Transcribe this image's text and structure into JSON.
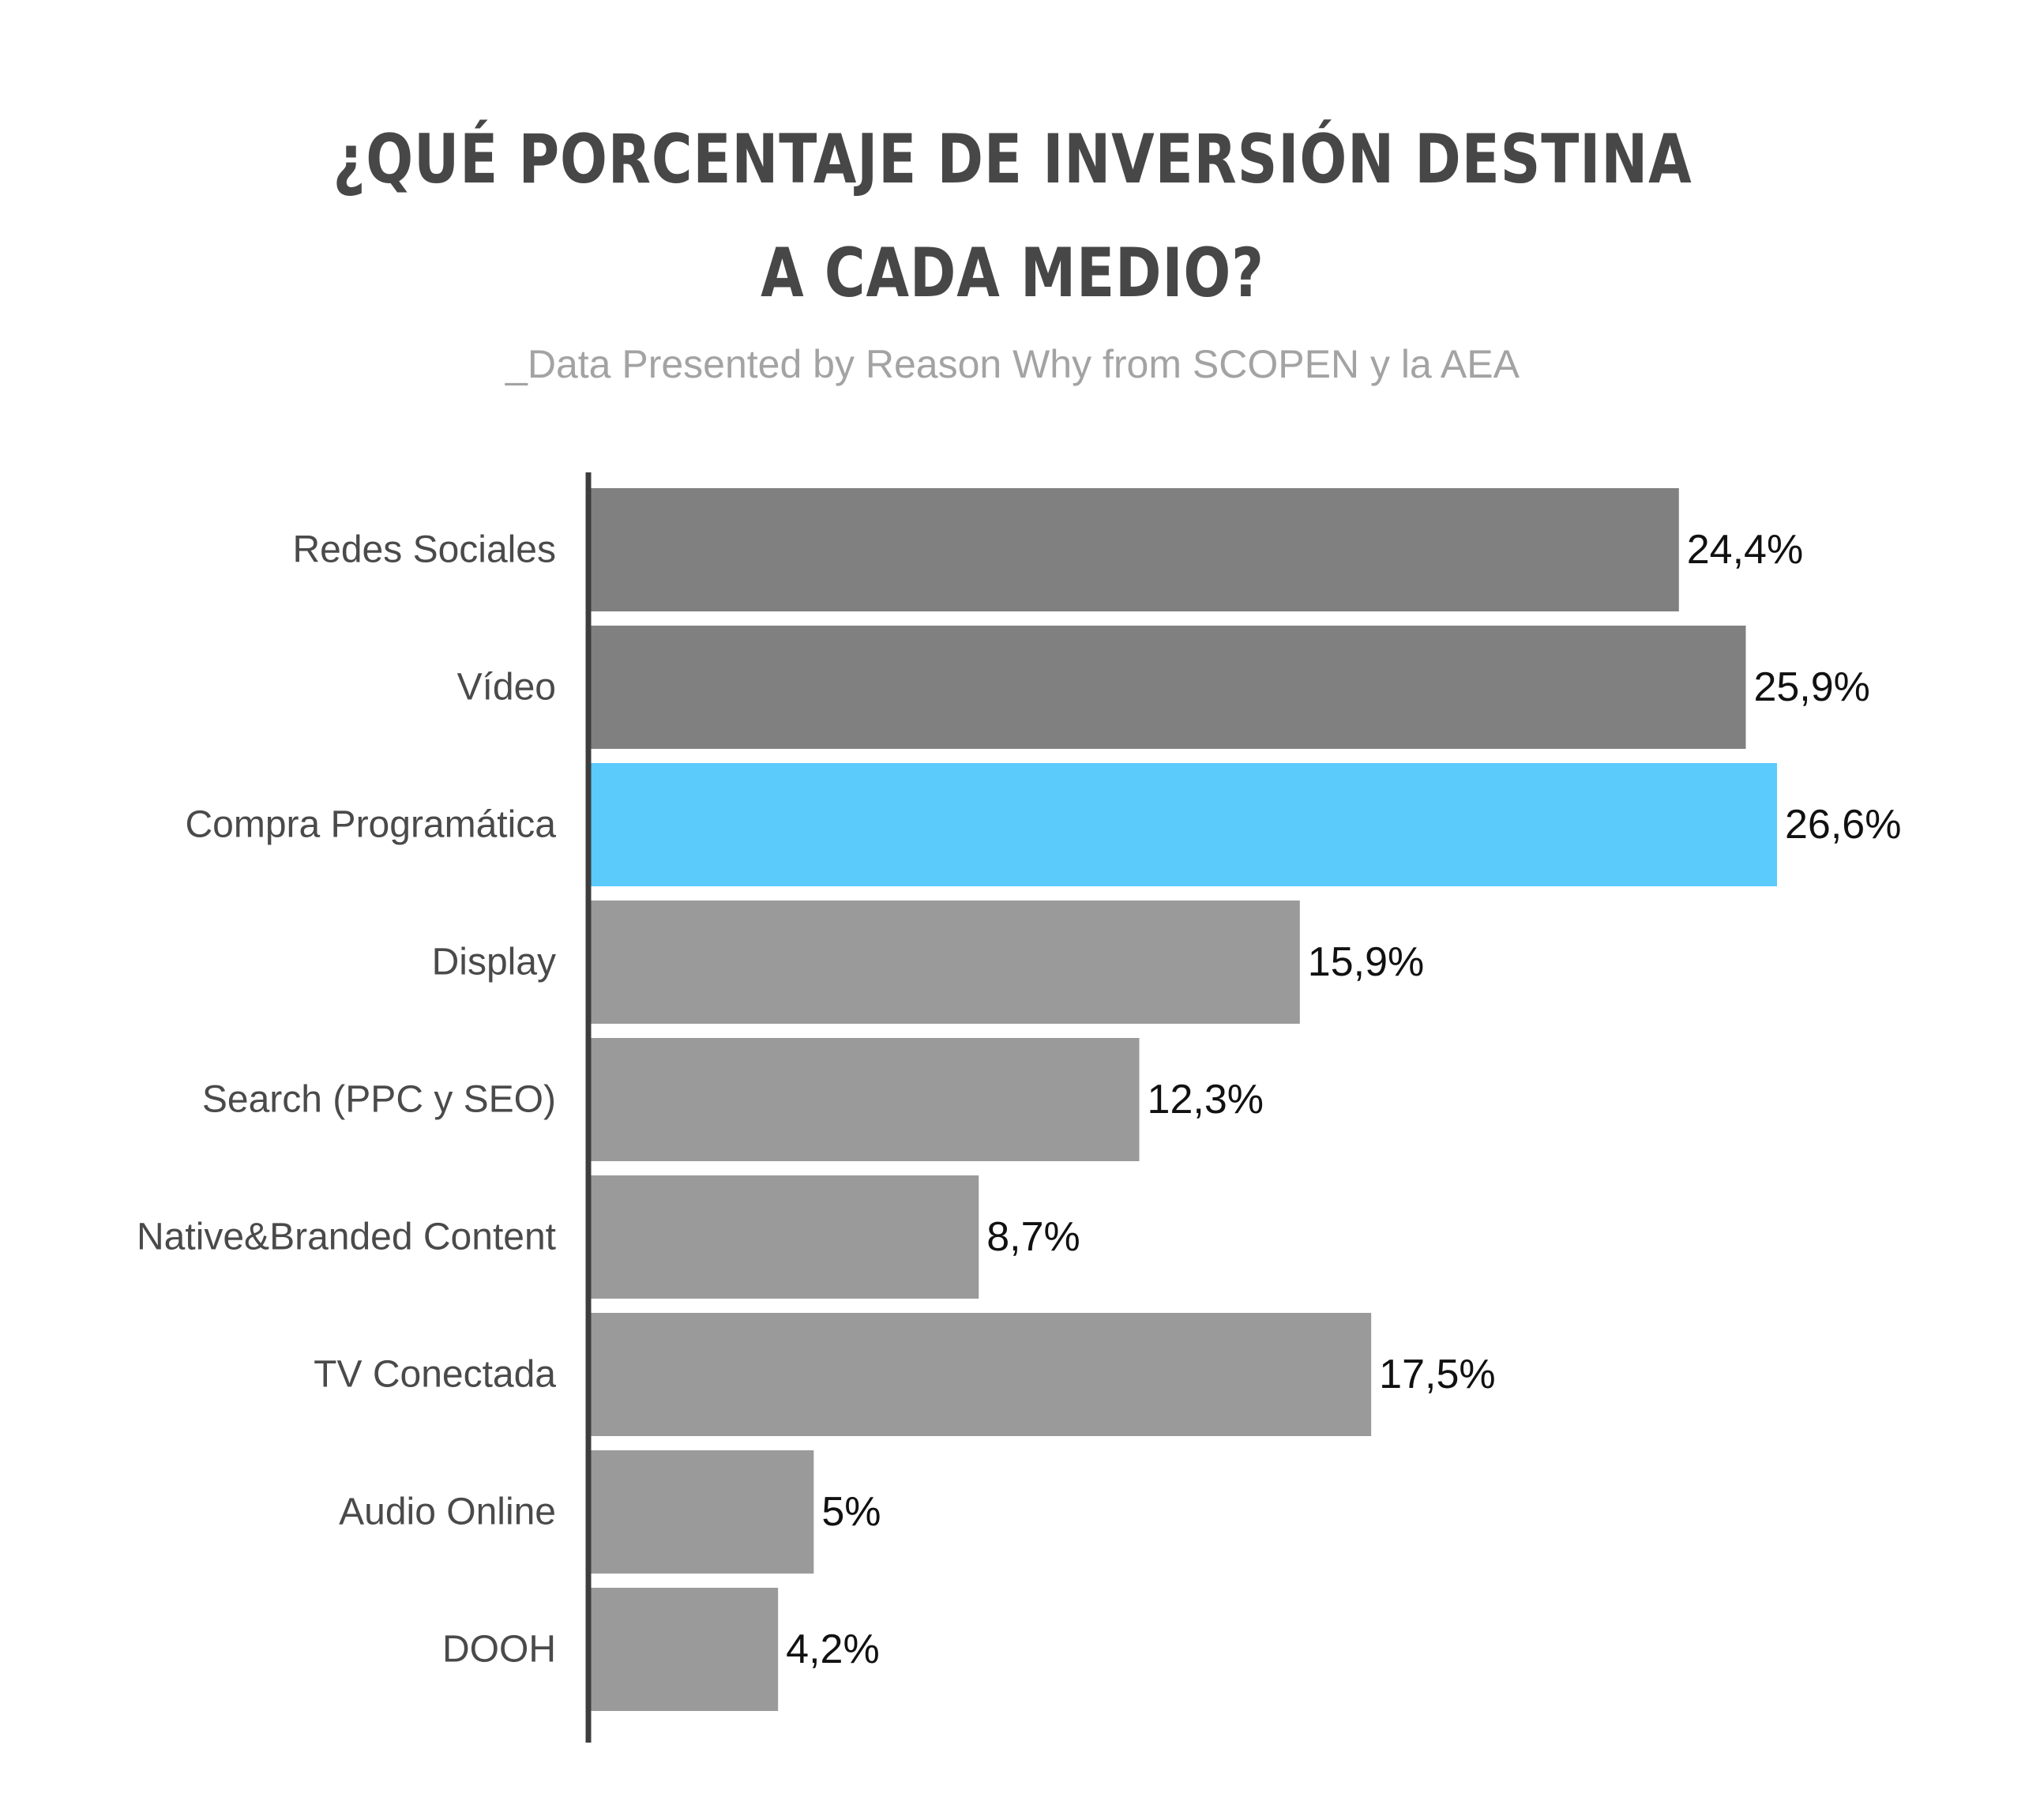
{
  "title": {
    "line1": "¿QUÉ PORCENTAJE DE INVERSIÓN DESTINA",
    "line2": "A CADA MEDIO?"
  },
  "subtitle": "_Data Presented by Reason Why from SCOPEN y la AEA",
  "colors": {
    "bar_dark": "#808080",
    "bar_light": "#9a9a9a",
    "bar_highlight": "#5bcbfc",
    "axis": "#3d3d3d"
  },
  "chart_data": {
    "type": "bar",
    "orientation": "horizontal",
    "categories": [
      "Redes Sociales",
      "Vídeo",
      "Compra Programática",
      "Display",
      "Search (PPC y SEO)",
      "Native&Branded Content",
      "TV Conectada",
      "Audio Online",
      "DOOH"
    ],
    "values": [
      24.4,
      25.9,
      26.6,
      15.9,
      12.3,
      8.7,
      17.5,
      5,
      4.2
    ],
    "value_labels": [
      "24,4%",
      "25,9%",
      "26,6%",
      "15,9%",
      "12,3%",
      "8,7%",
      "17,5%",
      "5%",
      "4,2%"
    ],
    "bar_color_keys": [
      "bar_dark",
      "bar_dark",
      "bar_highlight",
      "bar_light",
      "bar_light",
      "bar_light",
      "bar_light",
      "bar_light",
      "bar_light"
    ],
    "xlim": [
      0,
      26.6
    ],
    "grid": false,
    "legend": "none"
  }
}
